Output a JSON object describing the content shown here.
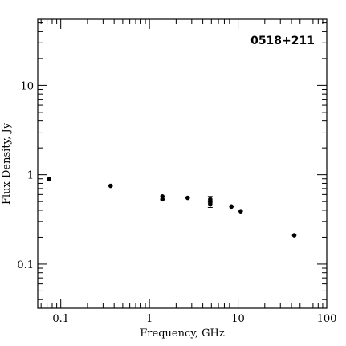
{
  "chart_data": {
    "type": "scatter",
    "title": "0518+211",
    "xlabel": "Frequency, GHz",
    "ylabel": "Flux Density, Jy",
    "xscale": "log",
    "yscale": "log",
    "xlim": [
      0.055,
      100
    ],
    "ylim": [
      0.032,
      55
    ],
    "grid": false,
    "legend": "none",
    "x_tick_labels": [
      "0.1",
      "1",
      "10",
      "100"
    ],
    "y_tick_labels": [
      "0.1",
      "1",
      "10"
    ],
    "series": [
      {
        "x": [
          0.074,
          0.365,
          1.4,
          1.4,
          2.7,
          4.85,
          4.85,
          4.85,
          8.4,
          10.7,
          43
        ],
        "y": [
          0.89,
          0.75,
          0.57,
          0.53,
          0.55,
          0.53,
          0.5,
          0.47,
          0.44,
          0.39,
          0.21
        ],
        "yerr": [
          0,
          0,
          0,
          0,
          0,
          0.04,
          0,
          0.04,
          0,
          0,
          0
        ]
      }
    ]
  }
}
